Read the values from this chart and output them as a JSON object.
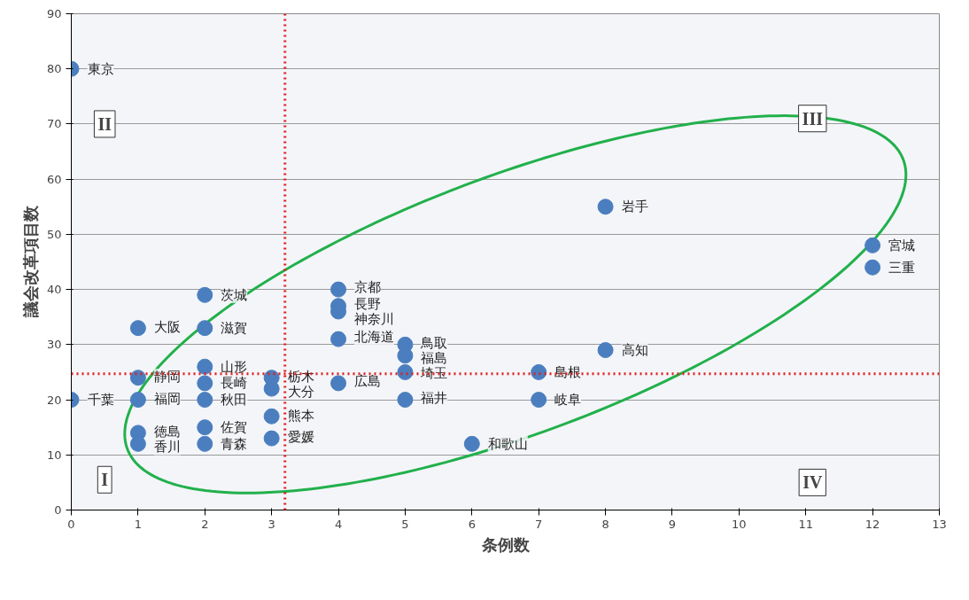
{
  "chart_data": {
    "type": "scatter",
    "xlabel": "条例数",
    "ylabel": "議会改革項目数",
    "series": [
      {
        "color": "#4a7ebf",
        "x": [
          0,
          0,
          1,
          1,
          1,
          1,
          1,
          2,
          2,
          2,
          2,
          2,
          2,
          2,
          3,
          3,
          3,
          3,
          4,
          4,
          4,
          4,
          4,
          5,
          5,
          5,
          5,
          6,
          7,
          7,
          8,
          8,
          12,
          12
        ],
        "values": [
          80,
          20,
          33,
          24,
          20,
          14,
          12,
          39,
          33,
          26,
          23,
          20,
          15,
          12,
          24,
          22,
          17,
          13,
          40,
          37,
          36,
          31,
          23,
          30,
          28,
          25,
          20,
          12,
          25,
          20,
          55,
          29,
          48,
          44
        ]
      }
    ],
    "xlim": [
      0,
      13
    ],
    "xticks": [
      0,
      1,
      2,
      3,
      4,
      5,
      6,
      7,
      8,
      9,
      10,
      11,
      12,
      13
    ],
    "ylim": [
      0,
      90
    ],
    "yticks": [
      0,
      10,
      20,
      30,
      40,
      50,
      60,
      70,
      80,
      90
    ],
    "grid": "y",
    "marker": "circle",
    "ref_lines": [
      {
        "axis": "x",
        "value": 3.2,
        "color": "#e02020",
        "line_style": "dotted"
      },
      {
        "axis": "y",
        "value": 24.7,
        "color": "#e02020",
        "line_style": "dotted"
      }
    ],
    "annotations": [
      {
        "text": "東京",
        "x": 0,
        "y": 80
      },
      {
        "text": "千葉",
        "x": 0,
        "y": 20
      },
      {
        "text": "大阪",
        "x": 1,
        "y": 33
      },
      {
        "text": "静岡",
        "x": 1,
        "y": 24
      },
      {
        "text": "福岡",
        "x": 1,
        "y": 20
      },
      {
        "text": "徳島",
        "x": 1,
        "y": 14
      },
      {
        "text": "香川",
        "x": 1,
        "y": 12
      },
      {
        "text": "茨城",
        "x": 2,
        "y": 39
      },
      {
        "text": "滋賀",
        "x": 2,
        "y": 33
      },
      {
        "text": "山形",
        "x": 2,
        "y": 26
      },
      {
        "text": "長崎",
        "x": 2,
        "y": 23
      },
      {
        "text": "秋田",
        "x": 2,
        "y": 20
      },
      {
        "text": "佐賀",
        "x": 2,
        "y": 15
      },
      {
        "text": "青森",
        "x": 2,
        "y": 12
      },
      {
        "text": "栃木",
        "x": 3,
        "y": 24
      },
      {
        "text": "大分",
        "x": 3,
        "y": 22
      },
      {
        "text": "熊本",
        "x": 3,
        "y": 17
      },
      {
        "text": "愛媛",
        "x": 3,
        "y": 13
      },
      {
        "text": "京都",
        "x": 4,
        "y": 40
      },
      {
        "text": "長野",
        "x": 4,
        "y": 37
      },
      {
        "text": "神奈川",
        "x": 4,
        "y": 36
      },
      {
        "text": "北海道",
        "x": 4,
        "y": 31
      },
      {
        "text": "広島",
        "x": 4,
        "y": 23
      },
      {
        "text": "鳥取",
        "x": 5,
        "y": 30
      },
      {
        "text": "福島",
        "x": 5,
        "y": 28
      },
      {
        "text": "埼玉",
        "x": 5,
        "y": 25
      },
      {
        "text": "福井",
        "x": 5,
        "y": 20
      },
      {
        "text": "和歌山",
        "x": 6,
        "y": 12
      },
      {
        "text": "島根",
        "x": 7,
        "y": 25
      },
      {
        "text": "岐阜",
        "x": 7,
        "y": 20
      },
      {
        "text": "岩手",
        "x": 8,
        "y": 55
      },
      {
        "text": "高知",
        "x": 8,
        "y": 29
      },
      {
        "text": "宮城",
        "x": 12,
        "y": 48
      },
      {
        "text": "三重",
        "x": 12,
        "y": 44
      },
      {
        "text": "I",
        "x": 0.5,
        "y": 5.5
      },
      {
        "text": "II",
        "x": 0.5,
        "y": 70
      },
      {
        "text": "III",
        "x": 11.1,
        "y": 71
      },
      {
        "text": "IV",
        "x": 11.1,
        "y": 5
      }
    ]
  }
}
